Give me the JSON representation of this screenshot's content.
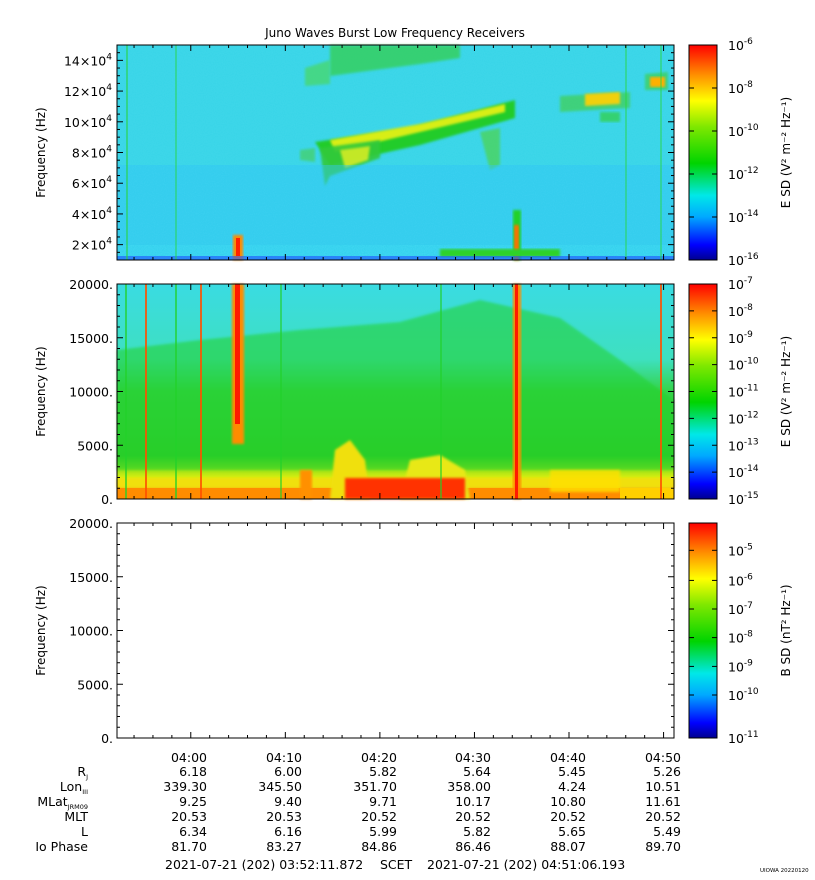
{
  "title": "Juno Waves Burst Low Frequency Receivers",
  "watermark": "UIOWA 20220120",
  "colors": {
    "bg_low": "#2fd3f0",
    "bg_mid": "#3ce0e4",
    "green": "#22d12a",
    "yellow": "#f2f20f",
    "orange": "#ff8c00",
    "red": "#ff1a00"
  },
  "panels": [
    {
      "ylabel": "Frequency (Hz)",
      "ytick_labels": [
        {
          "mant": "2×10",
          "exp": "4"
        },
        {
          "mant": "4×10",
          "exp": "4"
        },
        {
          "mant": "6×10",
          "exp": "4"
        },
        {
          "mant": "8×10",
          "exp": "4"
        },
        {
          "mant": "10×10",
          "exp": "4"
        },
        {
          "mant": "12×10",
          "exp": "4"
        },
        {
          "mant": "14×10",
          "exp": "4"
        }
      ],
      "colorbar_label": "E SD (V² m⁻² Hz⁻¹)",
      "colorbar_ticks": [
        {
          "mant": "10",
          "exp": "-6"
        },
        {
          "mant": "10",
          "exp": "-8"
        },
        {
          "mant": "10",
          "exp": "-10"
        },
        {
          "mant": "10",
          "exp": "-12"
        },
        {
          "mant": "10",
          "exp": "-14"
        },
        {
          "mant": "10",
          "exp": "-16"
        }
      ]
    },
    {
      "ylabel": "Frequency (Hz)",
      "ytick_labels": [
        "0.",
        "5000.",
        "10000.",
        "15000.",
        "20000."
      ],
      "colorbar_label": "E SD (V² m⁻² Hz⁻¹)",
      "colorbar_ticks": [
        {
          "mant": "10",
          "exp": "-7"
        },
        {
          "mant": "10",
          "exp": "-8"
        },
        {
          "mant": "10",
          "exp": "-9"
        },
        {
          "mant": "10",
          "exp": "-10"
        },
        {
          "mant": "10",
          "exp": "-11"
        },
        {
          "mant": "10",
          "exp": "-12"
        },
        {
          "mant": "10",
          "exp": "-13"
        },
        {
          "mant": "10",
          "exp": "-14"
        },
        {
          "mant": "10",
          "exp": "-15"
        }
      ]
    },
    {
      "ylabel": "Frequency (Hz)",
      "ytick_labels": [
        "0.",
        "5000.",
        "10000.",
        "15000.",
        "20000."
      ],
      "colorbar_label": "B SD (nT² Hz⁻¹)",
      "colorbar_ticks": [
        {
          "mant": "10",
          "exp": "-5"
        },
        {
          "mant": "10",
          "exp": "-6"
        },
        {
          "mant": "10",
          "exp": "-7"
        },
        {
          "mant": "10",
          "exp": "-8"
        },
        {
          "mant": "10",
          "exp": "-9"
        },
        {
          "mant": "10",
          "exp": "-10"
        },
        {
          "mant": "10",
          "exp": "-11"
        }
      ]
    }
  ],
  "ephemeris": {
    "row_labels": [
      {
        "main": "R",
        "sub": "J"
      },
      {
        "main": "Lon",
        "sub": "III"
      },
      {
        "main": "MLat",
        "sub": "JRM09"
      },
      {
        "main": "MLT",
        "sub": ""
      },
      {
        "main": "L",
        "sub": ""
      },
      {
        "main": "Io Phase",
        "sub": ""
      }
    ],
    "columns": [
      {
        "time": "04:00",
        "values": [
          "6.18",
          "339.30",
          "9.25",
          "20.53",
          "6.34",
          "81.70"
        ]
      },
      {
        "time": "04:10",
        "values": [
          "6.00",
          "345.50",
          "9.40",
          "20.53",
          "6.16",
          "83.27"
        ]
      },
      {
        "time": "04:20",
        "values": [
          "5.82",
          "351.70",
          "9.71",
          "20.52",
          "5.99",
          "84.86"
        ]
      },
      {
        "time": "04:30",
        "values": [
          "5.64",
          "358.00",
          "10.17",
          "20.52",
          "5.82",
          "86.46"
        ]
      },
      {
        "time": "04:40",
        "values": [
          "5.45",
          "4.24",
          "10.80",
          "20.52",
          "5.65",
          "88.07"
        ]
      },
      {
        "time": "04:50",
        "values": [
          "5.26",
          "10.51",
          "11.61",
          "20.52",
          "5.49",
          "89.70"
        ]
      }
    ]
  },
  "footer": {
    "start": "2021-07-21 (202) 03:52:11.872",
    "mid": "SCET",
    "end": "2021-07-21 (202) 04:51:06.193"
  },
  "chart_data": [
    {
      "type": "heatmap",
      "title": "Juno Waves Burst Low Frequency Receivers",
      "ylabel": "Frequency (Hz)",
      "ylim": [
        10000,
        150000
      ],
      "x_range": [
        "03:52:11.872",
        "04:51:06.193"
      ],
      "colorbar": {
        "label": "E SD (V² m⁻² Hz⁻¹)",
        "range": [
          "1e-16",
          "1e-6"
        ],
        "scale": "log"
      }
    },
    {
      "type": "heatmap",
      "ylabel": "Frequency (Hz)",
      "ylim": [
        0,
        20000
      ],
      "x_range": [
        "03:52:11.872",
        "04:51:06.193"
      ],
      "colorbar": {
        "label": "E SD (V² m⁻² Hz⁻¹)",
        "range": [
          "1e-15",
          "1e-7"
        ],
        "scale": "log"
      }
    },
    {
      "type": "heatmap",
      "ylabel": "Frequency (Hz)",
      "ylim": [
        0,
        20000
      ],
      "x_range": [
        "03:52:11.872",
        "04:51:06.193"
      ],
      "colorbar": {
        "label": "B SD (nT² Hz⁻¹)",
        "range": [
          "1e-11",
          "1e-4.5"
        ],
        "scale": "log"
      }
    }
  ]
}
